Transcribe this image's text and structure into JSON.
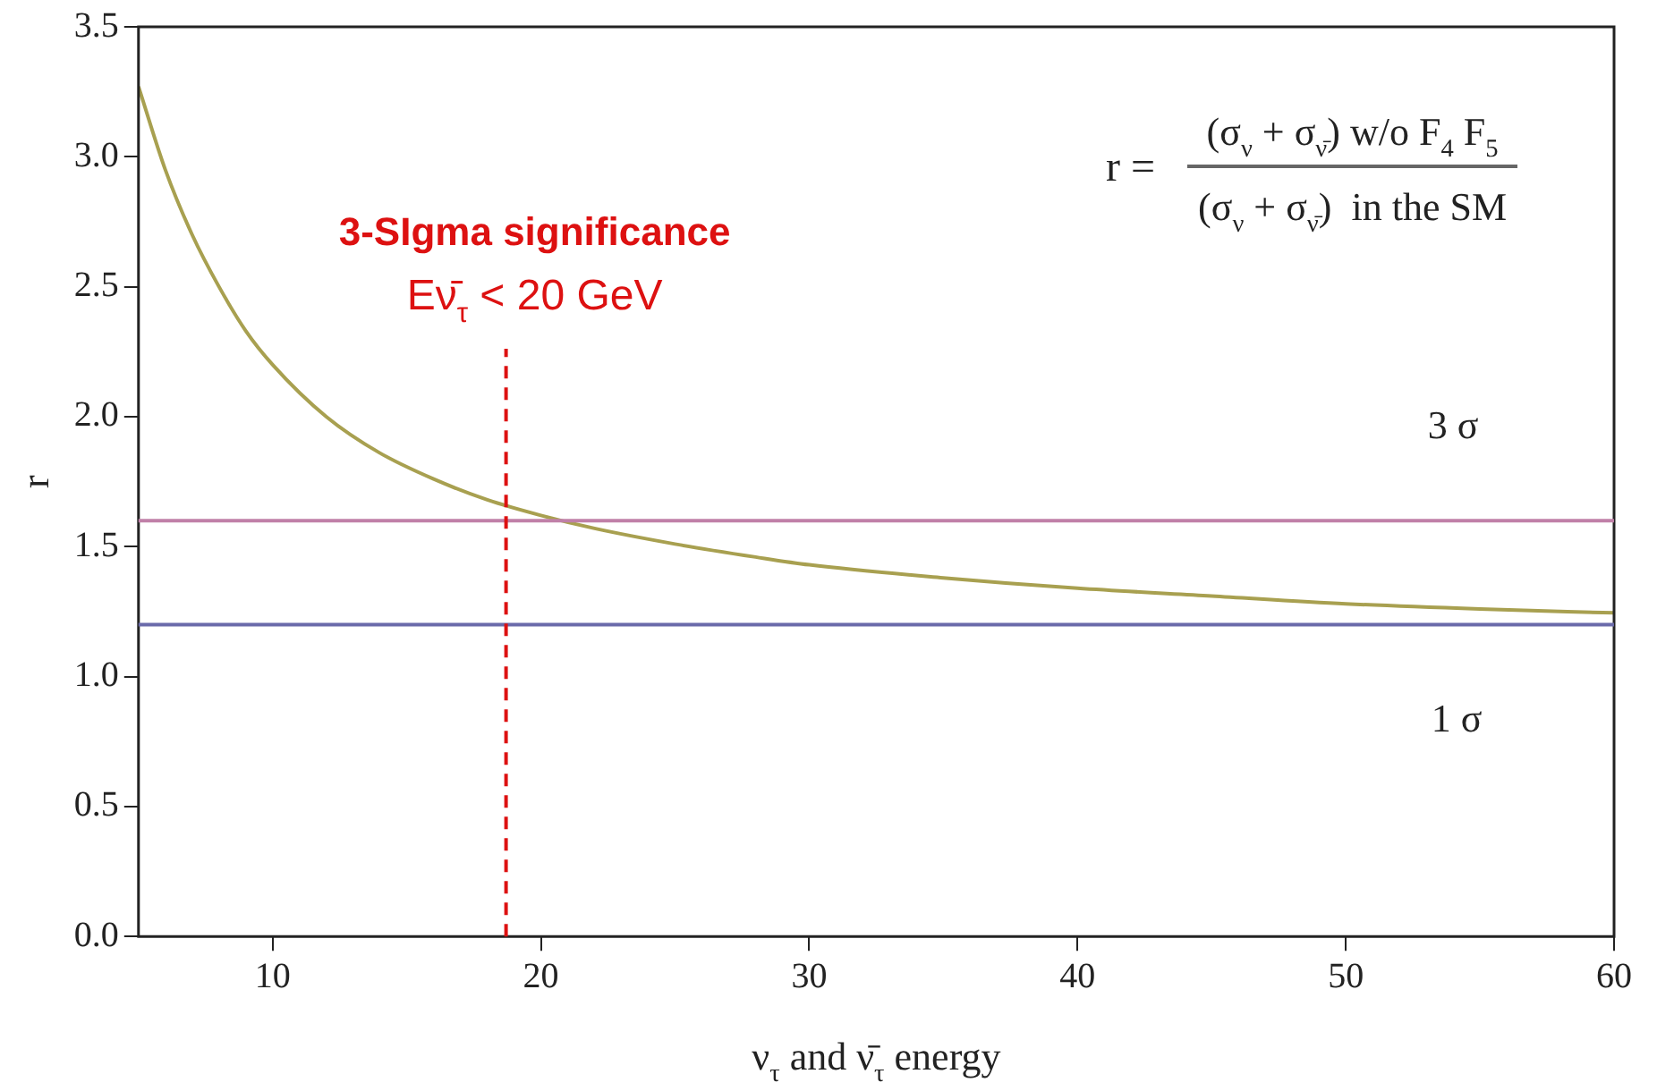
{
  "chart_data": {
    "type": "line",
    "xlabel": "ν$_{τ}$ and ν̄$_{τ}$ energy",
    "ylabel": "r",
    "xlim": [
      5,
      60
    ],
    "xticks": [
      10,
      20,
      30,
      40,
      50,
      60
    ],
    "ylim": [
      0,
      3.5
    ],
    "yticks": [
      {
        "value": 0,
        "label": "0.0"
      },
      {
        "value": 0.5,
        "label": "0.5"
      },
      {
        "value": 1,
        "label": "1.0"
      },
      {
        "value": 1.5,
        "label": "1.5"
      },
      {
        "value": 2,
        "label": "2.0"
      },
      {
        "value": 2.5,
        "label": "2.5"
      },
      {
        "value": 3,
        "label": "3.0"
      },
      {
        "value": 3.5,
        "label": "3.5"
      }
    ],
    "grid": false,
    "legend": false,
    "marker": "none",
    "line_style": "solid",
    "series": [
      {
        "color": "#a8a050",
        "x": [
          5,
          6,
          7,
          8,
          9,
          10,
          12,
          14,
          16,
          18,
          20,
          22,
          25,
          28,
          30,
          35,
          40,
          45,
          50,
          55,
          60
        ],
        "values": [
          3.27,
          2.95,
          2.7,
          2.5,
          2.33,
          2.2,
          2.0,
          1.86,
          1.76,
          1.68,
          1.62,
          1.57,
          1.51,
          1.46,
          1.43,
          1.38,
          1.34,
          1.31,
          1.28,
          1.26,
          1.245
        ]
      }
    ],
    "ref_lines": [
      {
        "axis": "y",
        "value": 1.6,
        "color": "#c080a8"
      },
      {
        "axis": "y",
        "value": 1.2,
        "color": "#6a6aaa"
      },
      {
        "axis": "x",
        "value": 18.7,
        "label": "Eν̄$_{τ}$ < 20 GeV",
        "color": "#dd1111",
        "line_style": "dashed"
      }
    ],
    "annotations": [
      "3-SIgma significance",
      "r =",
      "(σ$_{ν}$ + σ$_{ν̄}$) w/o F$_{4}$ F$_{5}$",
      "(σ$_{ν}$ + σ$_{ν̄}$)  in the SM",
      "3 σ",
      "1 σ"
    ]
  }
}
